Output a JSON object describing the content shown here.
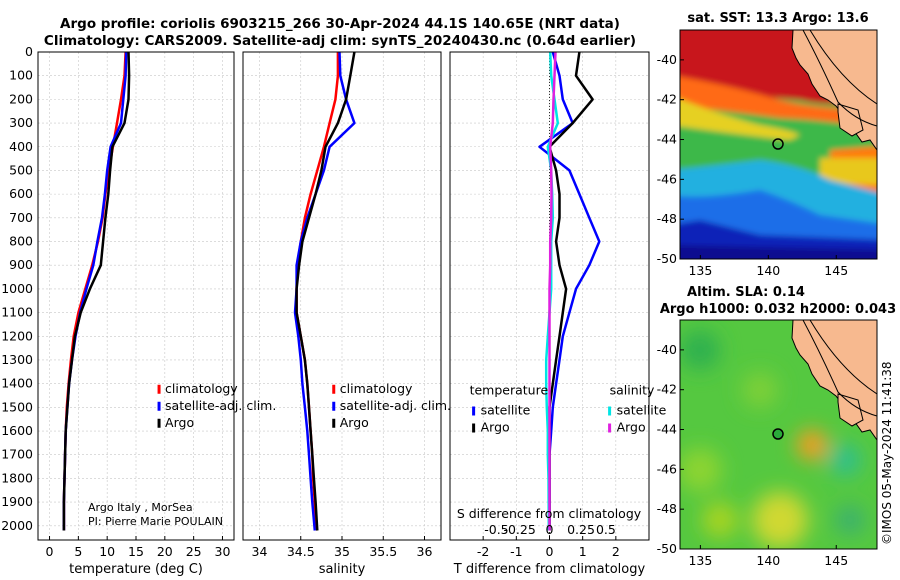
{
  "titles": {
    "line1": "Argo profile: coriolis 6903215_266 30-Apr-2024 44.1S 140.65E (NRT data)",
    "line2": "Climatology: CARS2009. Satellite-adj clim: synTS_20240430.nc (0.64d earlier)"
  },
  "credits": {
    "source": "Argo Italy , MorSea",
    "pi": "PI: Pierre Marie POULAIN",
    "stamp": "©IMOS 05-May-2024 11:41:38"
  },
  "map_titles": {
    "sst": "sat. SST: 13.3 Argo: 13.6",
    "sla_line1": "Altim. SLA: 0.14",
    "sla_line2": "Argo h1000: 0.032 h2000: 0.043"
  },
  "depth_ticks": [
    0,
    100,
    200,
    300,
    400,
    500,
    600,
    700,
    800,
    900,
    1000,
    1100,
    1200,
    1300,
    1400,
    1500,
    1600,
    1700,
    1800,
    1900,
    2000
  ],
  "chart_data": [
    {
      "type": "line",
      "title": "",
      "xlabel": "temperature (deg C)",
      "ylabel": "",
      "xlim": [
        -2,
        32
      ],
      "ylim": [
        2060,
        0
      ],
      "xticks": [
        0,
        5,
        10,
        15,
        20,
        25,
        30
      ],
      "legend": [
        "climatology",
        "satellite-adj. clim.",
        "Argo"
      ],
      "legend_placement": "lower-right",
      "series": [
        {
          "name": "climatology",
          "color": "#ff0000",
          "x": [
            13.2,
            13.0,
            12.4,
            11.7,
            11.0,
            10.3,
            9.7,
            9.2,
            8.4,
            7.4,
            6.2,
            5.0,
            4.2,
            3.7,
            3.3,
            3.0,
            2.8,
            2.7,
            2.6,
            2.5,
            2.5
          ],
          "y": [
            0,
            100,
            200,
            300,
            400,
            500,
            600,
            700,
            800,
            900,
            1000,
            1100,
            1200,
            1300,
            1400,
            1500,
            1600,
            1700,
            1800,
            1900,
            2020
          ]
        },
        {
          "name": "satellite-adj. clim.",
          "color": "#0000ff",
          "x": [
            13.3,
            13.2,
            12.8,
            12.4,
            10.6,
            10.0,
            9.6,
            9.1,
            8.3,
            7.6,
            6.4,
            5.3,
            4.5,
            3.9,
            3.4,
            3.1,
            2.8,
            2.7,
            2.6,
            2.5,
            2.5
          ],
          "y": [
            0,
            100,
            200,
            300,
            400,
            500,
            600,
            700,
            800,
            900,
            1000,
            1100,
            1200,
            1300,
            1400,
            1500,
            1600,
            1700,
            1800,
            1900,
            2020
          ]
        },
        {
          "name": "Argo",
          "color": "#000000",
          "x": [
            13.7,
            13.8,
            13.7,
            13.0,
            10.9,
            10.5,
            10.2,
            9.7,
            9.3,
            8.9,
            7.0,
            5.4,
            4.4,
            3.9,
            3.4,
            3.1,
            2.8,
            2.7,
            2.6,
            2.5,
            2.5
          ],
          "y": [
            0,
            100,
            200,
            300,
            400,
            500,
            600,
            700,
            800,
            900,
            1000,
            1100,
            1200,
            1300,
            1400,
            1500,
            1600,
            1700,
            1800,
            1900,
            2020
          ]
        }
      ]
    },
    {
      "type": "line",
      "title": "",
      "xlabel": "salinity",
      "ylabel": "",
      "xlim": [
        33.8,
        36.2
      ],
      "ylim": [
        2060,
        0
      ],
      "xticks": [
        34,
        34.5,
        35,
        35.5,
        36
      ],
      "legend": [
        "climatology",
        "satellite-adj. clim.",
        "Argo"
      ],
      "legend_placement": "lower-right",
      "series": [
        {
          "name": "climatology",
          "color": "#ff0000",
          "x": [
            34.95,
            34.95,
            34.92,
            34.85,
            34.78,
            34.7,
            34.62,
            34.55,
            34.5,
            34.46,
            34.45,
            34.45,
            34.5,
            34.55,
            34.58,
            34.6,
            34.62,
            34.64,
            34.65,
            34.67,
            34.68
          ],
          "y": [
            0,
            100,
            200,
            300,
            400,
            500,
            600,
            700,
            800,
            900,
            1000,
            1100,
            1200,
            1300,
            1400,
            1500,
            1600,
            1700,
            1800,
            1900,
            2020
          ]
        },
        {
          "name": "satellite-adj. clim.",
          "color": "#0000ff",
          "x": [
            34.97,
            34.98,
            35.05,
            35.15,
            34.85,
            34.78,
            34.68,
            34.58,
            34.5,
            34.45,
            34.45,
            34.43,
            34.47,
            34.5,
            34.52,
            34.55,
            34.58,
            34.6,
            34.62,
            34.64,
            34.67
          ],
          "y": [
            0,
            100,
            200,
            300,
            400,
            500,
            600,
            700,
            800,
            900,
            1000,
            1100,
            1200,
            1300,
            1400,
            1500,
            1600,
            1700,
            1800,
            1900,
            2020
          ]
        },
        {
          "name": "Argo",
          "color": "#000000",
          "x": [
            35.15,
            35.1,
            35.05,
            34.95,
            34.8,
            34.75,
            34.68,
            34.6,
            34.52,
            34.48,
            34.45,
            34.45,
            34.5,
            34.55,
            34.58,
            34.6,
            34.62,
            34.64,
            34.66,
            34.68,
            34.7
          ],
          "y": [
            0,
            100,
            200,
            300,
            400,
            500,
            600,
            700,
            800,
            900,
            1000,
            1100,
            1200,
            1300,
            1400,
            1500,
            1600,
            1700,
            1800,
            1900,
            2020
          ]
        }
      ]
    },
    {
      "type": "line",
      "title": "",
      "xlabel": "T difference from climatology",
      "xlabel_top": "S difference from climatology",
      "ylabel": "",
      "xlim": [
        -3,
        3
      ],
      "ylim": [
        2060,
        0
      ],
      "xticks": [
        -2,
        -1,
        0,
        1,
        2
      ],
      "xticks_secondary": [
        "-0.5",
        "-0.25",
        "0",
        "0.25",
        "0.5"
      ],
      "legend_groups": [
        {
          "title": "temperature",
          "entries": [
            "satellite",
            "Argo"
          ]
        },
        {
          "title": "salinity",
          "entries": [
            "satellite",
            "Argo"
          ]
        }
      ],
      "series": [
        {
          "name": "temperature satellite",
          "color": "#0000ff",
          "x": [
            0.1,
            0.3,
            0.4,
            0.7,
            -0.3,
            0.6,
            0.9,
            1.2,
            1.5,
            1.2,
            0.8,
            0.6,
            0.4,
            0.3,
            0.2,
            0.1,
            0.05,
            0.0,
            0.0,
            0.0
          ],
          "y": [
            0,
            100,
            200,
            300,
            400,
            500,
            600,
            700,
            800,
            900,
            1000,
            1100,
            1200,
            1300,
            1400,
            1500,
            1600,
            1700,
            1800,
            2020
          ]
        },
        {
          "name": "temperature Argo",
          "color": "#000000",
          "x": [
            0.9,
            0.8,
            1.3,
            0.7,
            0.0,
            0.2,
            0.3,
            0.3,
            0.2,
            0.3,
            0.5,
            0.4,
            0.3,
            0.2,
            0.1,
            0.0,
            0.0,
            0.0,
            0.0,
            0.0
          ],
          "y": [
            0,
            100,
            200,
            300,
            400,
            500,
            600,
            700,
            800,
            900,
            1000,
            1100,
            1200,
            1300,
            1400,
            1500,
            1600,
            1700,
            1800,
            2020
          ]
        },
        {
          "name": "salinity satellite",
          "color": "#00e5e5",
          "x": [
            0.02,
            0.05,
            0.15,
            0.25,
            -0.05,
            0.05,
            0.08,
            0.1,
            0.05,
            0.05,
            0.05,
            0.0,
            -0.05,
            -0.1,
            -0.1,
            -0.08,
            -0.05,
            -0.05,
            -0.03,
            -0.02
          ],
          "y": [
            0,
            100,
            200,
            300,
            400,
            500,
            600,
            700,
            800,
            900,
            1000,
            1100,
            1200,
            1300,
            1400,
            1500,
            1600,
            1700,
            1800,
            2020
          ]
        },
        {
          "name": "salinity Argo",
          "color": "#e020e0",
          "x": [
            0.18,
            0.15,
            0.12,
            0.1,
            0.02,
            0.05,
            0.06,
            0.05,
            0.02,
            0.02,
            0.0,
            0.0,
            0.0,
            0.0,
            0.0,
            0.0,
            0.0,
            0.0,
            0.0,
            0.0
          ],
          "y": [
            0,
            100,
            200,
            300,
            400,
            500,
            600,
            700,
            800,
            900,
            1000,
            1100,
            1200,
            1300,
            1400,
            1500,
            1600,
            1700,
            1800,
            2020
          ]
        }
      ]
    },
    {
      "type": "heatmap",
      "title": "sat. SST: 13.3 Argo: 13.6",
      "xlim": [
        133.5,
        148
      ],
      "ylim": [
        -50,
        -38.5
      ],
      "xticks": [
        135,
        140,
        145
      ],
      "yticks": [
        -40,
        -42,
        -44,
        -46,
        -48,
        -50
      ],
      "marker": {
        "lon": 140.65,
        "lat": -44.1
      }
    },
    {
      "type": "heatmap",
      "title": "Altim. SLA: 0.14",
      "xlim": [
        133.5,
        148
      ],
      "ylim": [
        -50,
        -38.5
      ],
      "xticks": [
        135,
        140,
        145
      ],
      "yticks": [
        -40,
        -42,
        -44,
        -46,
        -48,
        -50
      ],
      "marker": {
        "lon": 140.65,
        "lat": -44.1
      }
    }
  ]
}
